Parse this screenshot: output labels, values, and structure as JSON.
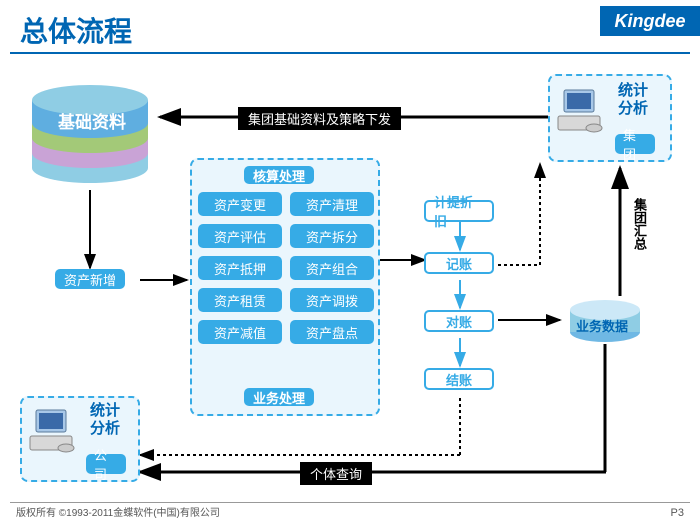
{
  "title": "总体流程",
  "logo": "Kingdee",
  "copyright": "版权所有  ©1993-2011金蝶软件(中国)有限公司",
  "pagenum": "P3",
  "db_label": "基础资料",
  "db_colors": [
    "#8fcde4",
    "#a3c978",
    "#c9a3d6",
    "#8fcde4"
  ],
  "asset_new": "资产新增",
  "center": {
    "header": "核算处理",
    "footer": "业务处理",
    "items": [
      "资产变更",
      "资产清理",
      "资产评估",
      "资产拆分",
      "资产抵押",
      "资产组合",
      "资产租赁",
      "资产调拨",
      "资产减值",
      "资产盘点"
    ]
  },
  "flow_col": [
    "计提折旧",
    "记账",
    "对账",
    "结账"
  ],
  "biz_data": "业务数据",
  "group_summary": "集团汇总",
  "arrow_top": "集团基础资料及策略下发",
  "arrow_bottom": "个体查询",
  "stat_box": {
    "title": "统计分析",
    "group": "集团",
    "company": "公司"
  },
  "colors": {
    "brand": "#0066b3",
    "node": "#36abe6",
    "dash_bg": "#eaf6fd"
  }
}
